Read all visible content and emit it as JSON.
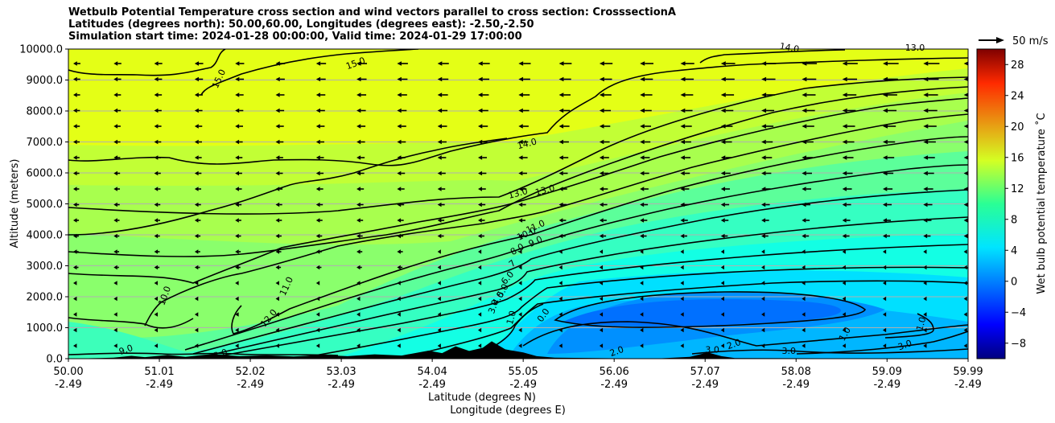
{
  "chart_data": {
    "type": "contour",
    "title_lines": [
      "Wetbulb Potential Temperature cross section and wind vectors parallel to cross section: CrosssectionA",
      "Latitudes (degrees north): 50.00,60.00, Longitudes (degrees east): -2.50,-2.50",
      "Simulation start time: 2024-01-28 00:00:00, Valid time: 2024-01-29 17:00:00"
    ],
    "ylabel": "Altitude (meters)",
    "xlabel_lines": [
      "Latitude (degrees N)",
      "Longitude (degrees E)"
    ],
    "x_range": [
      50.0,
      59.99
    ],
    "ylim": [
      0,
      10000
    ],
    "x_ticks": [
      {
        "lat": "50.00",
        "lon": "-2.49"
      },
      {
        "lat": "51.01",
        "lon": "-2.49"
      },
      {
        "lat": "52.02",
        "lon": "-2.49"
      },
      {
        "lat": "53.03",
        "lon": "-2.49"
      },
      {
        "lat": "54.04",
        "lon": "-2.49"
      },
      {
        "lat": "55.05",
        "lon": "-2.49"
      },
      {
        "lat": "56.06",
        "lon": "-2.49"
      },
      {
        "lat": "57.07",
        "lon": "-2.49"
      },
      {
        "lat": "58.08",
        "lon": "-2.49"
      },
      {
        "lat": "59.09",
        "lon": "-2.49"
      },
      {
        "lat": "59.99",
        "lon": "-2.49"
      }
    ],
    "y_ticks": [
      "0.0",
      "1000.0",
      "2000.0",
      "3000.0",
      "4000.0",
      "5000.0",
      "6000.0",
      "7000.0",
      "8000.0",
      "9000.0",
      "10000.0"
    ],
    "grid": "horizontal",
    "colorbar": {
      "label": "Wet bulb potential temperature ˚C",
      "range": [
        -10,
        30
      ],
      "ticks": [
        "−8",
        "−4",
        "0",
        "4",
        "8",
        "12",
        "16",
        "20",
        "24",
        "28"
      ],
      "colormap": "jet"
    },
    "quiver_key": {
      "label": "50 m/s"
    },
    "contour_labels": [
      {
        "text": "15.0",
        "lat": 53.2,
        "alt": 9450,
        "rot": -20
      },
      {
        "text": "15.0",
        "lat": 51.7,
        "alt": 9000,
        "rot": -65
      },
      {
        "text": "14.0",
        "lat": 58.0,
        "alt": 9950,
        "rot": 10
      },
      {
        "text": "13.0",
        "lat": 59.4,
        "alt": 9950,
        "rot": 0
      },
      {
        "text": "14.0",
        "lat": 55.1,
        "alt": 6850,
        "rot": -15
      },
      {
        "text": "13.0",
        "lat": 55.0,
        "alt": 5250,
        "rot": -15
      },
      {
        "text": "13.0",
        "lat": 55.3,
        "alt": 5350,
        "rot": -15
      },
      {
        "text": "11.0",
        "lat": 55.2,
        "alt": 4180,
        "rot": -25
      },
      {
        "text": "10.0",
        "lat": 55.1,
        "alt": 3950,
        "rot": -25
      },
      {
        "text": "9.0",
        "lat": 55.2,
        "alt": 3700,
        "rot": -25
      },
      {
        "text": "8.0",
        "lat": 55.0,
        "alt": 3450,
        "rot": -30
      },
      {
        "text": "7",
        "lat": 54.95,
        "alt": 3000,
        "rot": -40
      },
      {
        "text": "6.0",
        "lat": 54.9,
        "alt": 2550,
        "rot": -50
      },
      {
        "text": "5.0",
        "lat": 54.85,
        "alt": 2150,
        "rot": -60
      },
      {
        "text": "4.0",
        "lat": 54.8,
        "alt": 1900,
        "rot": -60
      },
      {
        "text": "3.0",
        "lat": 54.75,
        "alt": 1650,
        "rot": -70
      },
      {
        "text": "1.0",
        "lat": 54.95,
        "alt": 1300,
        "rot": -75
      },
      {
        "text": "0.0",
        "lat": 55.3,
        "alt": 1350,
        "rot": -55
      },
      {
        "text": "11.0",
        "lat": 52.45,
        "alt": 2300,
        "rot": -65
      },
      {
        "text": "12.0",
        "lat": 52.25,
        "alt": 1250,
        "rot": -50
      },
      {
        "text": "10.0",
        "lat": 51.1,
        "alt": 2000,
        "rot": -70
      },
      {
        "text": "1.0",
        "lat": 58.65,
        "alt": 750,
        "rot": -60
      },
      {
        "text": "1.0",
        "lat": 59.5,
        "alt": 1100,
        "rot": -75
      },
      {
        "text": "2.0",
        "lat": 57.4,
        "alt": 380,
        "rot": -20
      },
      {
        "text": "3.0",
        "lat": 58.0,
        "alt": 150,
        "rot": 0
      },
      {
        "text": "3.0",
        "lat": 59.3,
        "alt": 350,
        "rot": -20
      },
      {
        "text": "2.0",
        "lat": 56.1,
        "alt": 150,
        "rot": -20
      },
      {
        "text": "9.0",
        "lat": 50.65,
        "alt": 200,
        "rot": -20
      },
      {
        "text": "3.0",
        "lat": 51.7,
        "alt": 60,
        "rot": -20
      },
      {
        "text": "3.0",
        "lat": 57.15,
        "alt": 200,
        "rot": 0
      }
    ],
    "terrain": [
      {
        "lat": 50.0,
        "alt": 0
      },
      {
        "lat": 50.5,
        "alt": 30
      },
      {
        "lat": 50.7,
        "alt": 90
      },
      {
        "lat": 50.85,
        "alt": 50
      },
      {
        "lat": 51.1,
        "alt": 120
      },
      {
        "lat": 51.3,
        "alt": 60
      },
      {
        "lat": 51.6,
        "alt": 150
      },
      {
        "lat": 51.9,
        "alt": 80
      },
      {
        "lat": 52.2,
        "alt": 110
      },
      {
        "lat": 52.5,
        "alt": 70
      },
      {
        "lat": 52.8,
        "alt": 120
      },
      {
        "lat": 53.1,
        "alt": 80
      },
      {
        "lat": 53.4,
        "alt": 140
      },
      {
        "lat": 53.7,
        "alt": 100
      },
      {
        "lat": 54.0,
        "alt": 260
      },
      {
        "lat": 54.15,
        "alt": 180
      },
      {
        "lat": 54.3,
        "alt": 400
      },
      {
        "lat": 54.45,
        "alt": 250
      },
      {
        "lat": 54.6,
        "alt": 350
      },
      {
        "lat": 54.7,
        "alt": 560
      },
      {
        "lat": 54.85,
        "alt": 300
      },
      {
        "lat": 55.05,
        "alt": 200
      },
      {
        "lat": 55.2,
        "alt": 80
      },
      {
        "lat": 55.4,
        "alt": 30
      },
      {
        "lat": 56.5,
        "alt": 0
      },
      {
        "lat": 56.9,
        "alt": 60
      },
      {
        "lat": 57.1,
        "alt": 200
      },
      {
        "lat": 57.25,
        "alt": 80
      },
      {
        "lat": 57.4,
        "alt": 20
      },
      {
        "lat": 59.99,
        "alt": 0
      }
    ]
  }
}
